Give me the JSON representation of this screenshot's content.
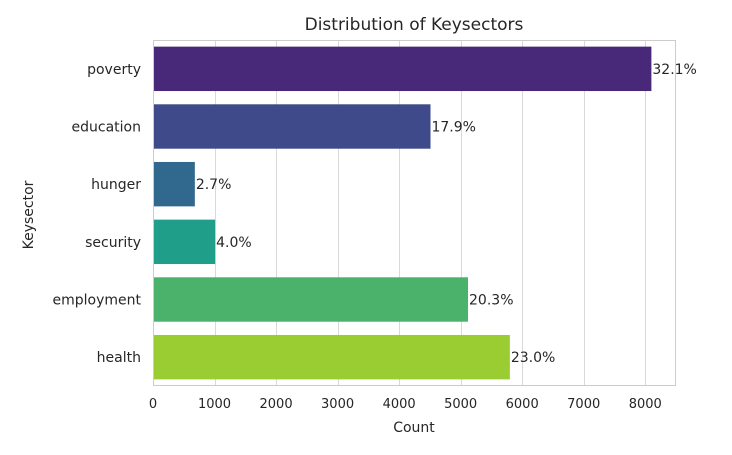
{
  "chart_data": {
    "type": "bar",
    "orientation": "horizontal",
    "title": "Distribution of Keysectors",
    "xlabel": "Count",
    "ylabel": "Keysector",
    "xlim": [
      0,
      8500
    ],
    "xticks": [
      0,
      1000,
      2000,
      3000,
      4000,
      5000,
      6000,
      7000,
      8000
    ],
    "grid": "vertical",
    "categories": [
      "poverty",
      "education",
      "hunger",
      "security",
      "employment",
      "health"
    ],
    "values": [
      8100,
      4510,
      680,
      1010,
      5120,
      5800
    ],
    "percent_labels": [
      "32.1%",
      "17.9%",
      "2.7%",
      "4.0%",
      "20.3%",
      "23.0%"
    ],
    "colors": [
      "#482878",
      "#3e4a89",
      "#31688e",
      "#1f9e89",
      "#4ab26a",
      "#9acd32"
    ]
  }
}
